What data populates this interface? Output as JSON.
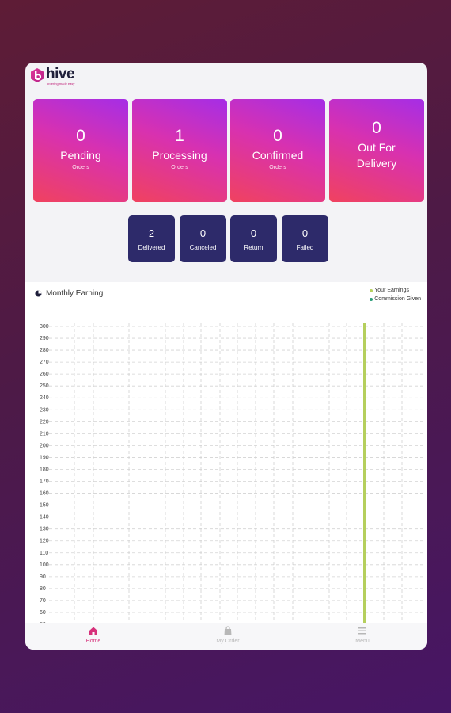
{
  "app": {
    "logo_text": "hive",
    "logo_tagline": "ordering made easy"
  },
  "order_cards": [
    {
      "count": "0",
      "label": "Pending",
      "sub": "Orders"
    },
    {
      "count": "1",
      "label": "Processing",
      "sub": "Orders"
    },
    {
      "count": "0",
      "label": "Confirmed",
      "sub": "Orders"
    },
    {
      "count": "0",
      "label_line1": "Out For",
      "label_line2": "Delivery"
    }
  ],
  "status_cards": [
    {
      "count": "2",
      "label": "Delivered"
    },
    {
      "count": "0",
      "label": "Canceled"
    },
    {
      "count": "0",
      "label": "Return"
    },
    {
      "count": "0",
      "label": "Failed"
    }
  ],
  "chart": {
    "title": "Monthly Earning",
    "legend": [
      {
        "label": "Your Earnings",
        "color": "#b5cf5d"
      },
      {
        "label": "Commission Given",
        "color": "#2a9d78"
      }
    ]
  },
  "chart_data": {
    "type": "bar",
    "title": "Monthly Earning",
    "y_ticks": [
      300,
      290,
      280,
      270,
      260,
      250,
      240,
      230,
      220,
      210,
      200,
      190,
      180,
      170,
      160,
      150,
      140,
      130,
      120,
      110,
      100,
      90,
      80,
      70,
      60,
      50
    ],
    "series": [
      {
        "name": "Your Earnings",
        "color": "#b5cf5d"
      },
      {
        "name": "Commission Given",
        "color": "#2a9d78"
      }
    ],
    "grid": true
  },
  "bottom_nav": [
    {
      "label": "Home",
      "active": true
    },
    {
      "label": "My Order",
      "active": false
    },
    {
      "label": "Menu",
      "active": false
    }
  ]
}
